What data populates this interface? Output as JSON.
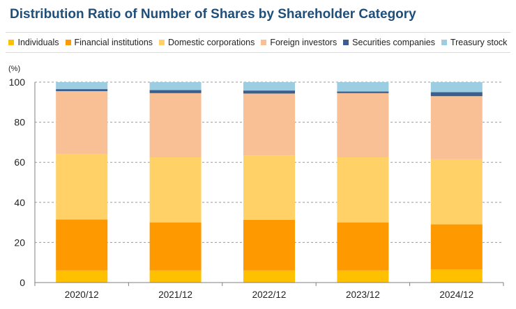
{
  "chart_data": {
    "type": "bar",
    "stacked": true,
    "title": "Distribution Ratio of Number of Shares by Shareholder Category",
    "unit_label": "(%)",
    "categories": [
      "2020/12",
      "2021/12",
      "2022/12",
      "2023/12",
      "2024/12"
    ],
    "series": [
      {
        "name": "Individuals",
        "color": "#ffc000",
        "values": [
          6.0,
          6.0,
          6.0,
          6.0,
          6.5
        ]
      },
      {
        "name": "Financial institutions",
        "color": "#ff9900",
        "values": [
          25.5,
          24.0,
          25.3,
          24.0,
          22.5
        ]
      },
      {
        "name": "Domestic corporations",
        "color": "#ffd166",
        "values": [
          32.5,
          32.5,
          32.2,
          32.5,
          32.5
        ]
      },
      {
        "name": "Foreign investors",
        "color": "#f9c096",
        "values": [
          31.5,
          32.0,
          30.8,
          32.0,
          31.5
        ]
      },
      {
        "name": "Securities companies",
        "color": "#3a5f8f",
        "values": [
          1.0,
          1.5,
          1.5,
          0.8,
          2.0
        ]
      },
      {
        "name": "Treasury stock",
        "color": "#9dcde0",
        "values": [
          3.5,
          4.0,
          4.2,
          4.7,
          5.0
        ]
      }
    ],
    "ylim": [
      0,
      100
    ],
    "yticks": [
      0,
      20,
      40,
      60,
      80,
      100
    ],
    "grid": "horizontal-dashed",
    "legend_position": "top"
  }
}
